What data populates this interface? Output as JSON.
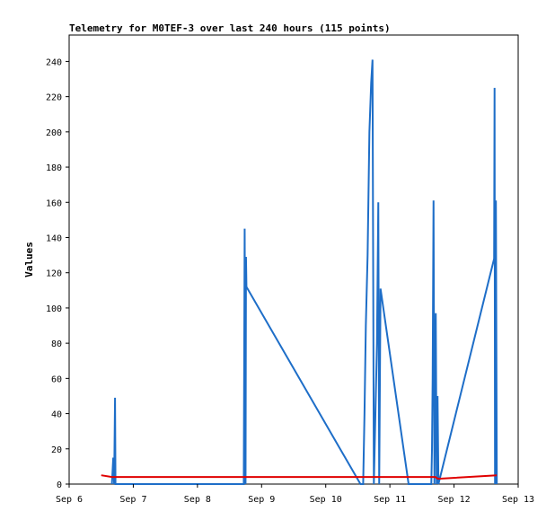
{
  "chart_data": {
    "type": "line",
    "title": "Telemetry for M0TEF-3 over last 240 hours (115 points)",
    "xlabel": "",
    "ylabel": "Values",
    "x_ticks": [
      "Sep 6",
      "Sep 7",
      "Sep 8",
      "Sep 9",
      "Sep 10",
      "Sep 11",
      "Sep 12",
      "Sep 13"
    ],
    "y_ticks": [
      0,
      20,
      40,
      60,
      80,
      100,
      120,
      140,
      160,
      180,
      200,
      220,
      240
    ],
    "xlim": [
      "2023-09-06 00:00",
      "2023-09-13 00:00"
    ],
    "ylim": [
      0,
      255
    ],
    "grid": false,
    "legend": "none",
    "series": [
      {
        "color": "#1e6ec8",
        "points": [
          [
            "2023-09-06 16:00",
            0
          ],
          [
            "2023-09-06 16:30",
            15
          ],
          [
            "2023-09-06 16:50",
            0
          ],
          [
            "2023-09-06 17:10",
            49
          ],
          [
            "2023-09-06 17:20",
            0
          ],
          [
            "2023-09-08 17:20",
            0
          ],
          [
            "2023-09-08 17:40",
            145
          ],
          [
            "2023-09-08 18:00",
            0
          ],
          [
            "2023-09-08 18:10",
            129
          ],
          [
            "2023-09-08 18:20",
            112
          ],
          [
            "2023-09-10 13:00",
            0
          ],
          [
            "2023-09-10 14:00",
            0
          ],
          [
            "2023-09-10 14:30",
            40
          ],
          [
            "2023-09-10 15:00",
            90
          ],
          [
            "2023-09-10 15:40",
            130
          ],
          [
            "2023-09-10 16:20",
            200
          ],
          [
            "2023-09-10 17:00",
            228
          ],
          [
            "2023-09-10 17:30",
            241
          ],
          [
            "2023-09-10 18:00",
            0
          ],
          [
            "2023-09-10 19:10",
            80
          ],
          [
            "2023-09-10 19:40",
            160
          ],
          [
            "2023-09-10 20:00",
            0
          ],
          [
            "2023-09-10 20:30",
            111
          ],
          [
            "2023-09-11 07:00",
            0
          ],
          [
            "2023-09-11 15:30",
            0
          ],
          [
            "2023-09-11 15:45",
            20
          ],
          [
            "2023-09-11 16:00",
            60
          ],
          [
            "2023-09-11 16:20",
            161
          ],
          [
            "2023-09-11 16:40",
            0
          ],
          [
            "2023-09-11 17:10",
            97
          ],
          [
            "2023-09-11 17:30",
            0
          ],
          [
            "2023-09-11 17:50",
            50
          ],
          [
            "2023-09-11 18:10",
            0
          ],
          [
            "2023-09-12 15:00",
            128
          ],
          [
            "2023-09-12 15:10",
            225
          ],
          [
            "2023-09-12 15:20",
            0
          ],
          [
            "2023-09-12 15:40",
            161
          ],
          [
            "2023-09-12 16:00",
            0
          ]
        ]
      },
      {
        "color": "#e00000",
        "points": [
          [
            "2023-09-06 12:00",
            5
          ],
          [
            "2023-09-06 16:00",
            4
          ],
          [
            "2023-09-11 17:00",
            4
          ],
          [
            "2023-09-11 18:00",
            3
          ],
          [
            "2023-09-12 16:00",
            5
          ]
        ]
      }
    ]
  }
}
